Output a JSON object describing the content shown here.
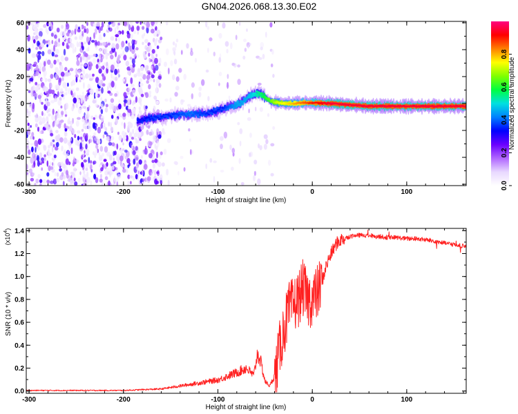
{
  "title": "GN04.2026.068.13.30.E02",
  "chart_data": [
    {
      "type": "heatmap",
      "xlabel": "Height of straight line (km)",
      "ylabel": "Frequency (Hz)",
      "xlim": [
        -303,
        163
      ],
      "ylim": [
        -61,
        61
      ],
      "x_ticks": [
        -300,
        -200,
        -100,
        0,
        100
      ],
      "y_ticks": [
        -60,
        -40,
        -20,
        0,
        20,
        40,
        60
      ],
      "colorbar": {
        "label": "Normalized spectral amplitude",
        "range": [
          0.0,
          1.0
        ],
        "ticks": [
          0.0,
          0.2,
          0.4,
          0.6,
          0.8
        ],
        "colormap": [
          "#ffffff",
          "#e8d8ff",
          "#b066ff",
          "#6a00ff",
          "#0000ff",
          "#0080ff",
          "#00e0e0",
          "#00ff40",
          "#80ff00",
          "#ffff00",
          "#ff8000",
          "#ff0000",
          "#ff0080"
        ]
      },
      "ridge": {
        "x": [
          -185,
          -170,
          -150,
          -130,
          -110,
          -95,
          -80,
          -70,
          -62,
          -56,
          -50,
          -45,
          -40,
          -30,
          -20,
          -10,
          0,
          20,
          40,
          60,
          80,
          100,
          120,
          140,
          163
        ],
        "y": [
          -13,
          -11,
          -9,
          -8,
          -7,
          -4,
          -1,
          3,
          7,
          8,
          5,
          2,
          1,
          0,
          0,
          0.5,
          0.5,
          0,
          -1,
          -2,
          -2,
          -2,
          -2,
          -2,
          -2
        ],
        "amplitude": [
          0.3,
          0.35,
          0.35,
          0.4,
          0.35,
          0.35,
          0.45,
          0.45,
          0.5,
          0.55,
          0.6,
          0.65,
          0.7,
          0.75,
          0.8,
          0.85,
          0.9,
          0.95,
          0.95,
          0.95,
          0.95,
          0.95,
          0.95,
          0.95,
          0.95
        ]
      },
      "noise_region_x": [
        -303,
        -160
      ]
    },
    {
      "type": "line",
      "xlabel": "Height of straight line (km)",
      "ylabel": "SNR (10 * v/v)",
      "y_multiplier": "(x10",
      "y_multiplier_exp": "4",
      "y_multiplier_close": ")",
      "xlim": [
        -303,
        163
      ],
      "ylim": [
        -0.02,
        1.42
      ],
      "x_ticks": [
        -300,
        -200,
        -100,
        0,
        100
      ],
      "y_ticks": [
        0.0,
        0.2,
        0.4,
        0.6,
        0.8,
        1.0,
        1.2,
        1.4
      ],
      "color": "#ff2020",
      "series": [
        {
          "x": [
            -303,
            -250,
            -200,
            -160,
            -140,
            -120,
            -100,
            -80,
            -70,
            -62,
            -58,
            -55,
            -50,
            -45,
            -40,
            -35,
            -30,
            -25,
            -20,
            -15,
            -10,
            -5,
            0,
            5,
            10,
            15,
            20,
            25,
            30,
            40,
            50,
            60,
            70,
            80,
            90,
            100,
            110,
            120,
            130,
            140,
            150,
            163
          ],
          "y": [
            0.0,
            0.0,
            0.0,
            0.01,
            0.03,
            0.05,
            0.07,
            0.12,
            0.15,
            0.1,
            0.25,
            0.2,
            0.06,
            0.03,
            0.1,
            0.35,
            0.55,
            0.7,
            0.75,
            0.8,
            0.9,
            0.8,
            0.8,
            0.85,
            0.95,
            1.1,
            1.2,
            1.28,
            1.32,
            1.35,
            1.36,
            1.36,
            1.35,
            1.34,
            1.34,
            1.33,
            1.33,
            1.32,
            1.31,
            1.29,
            1.28,
            1.26
          ]
        }
      ]
    }
  ]
}
